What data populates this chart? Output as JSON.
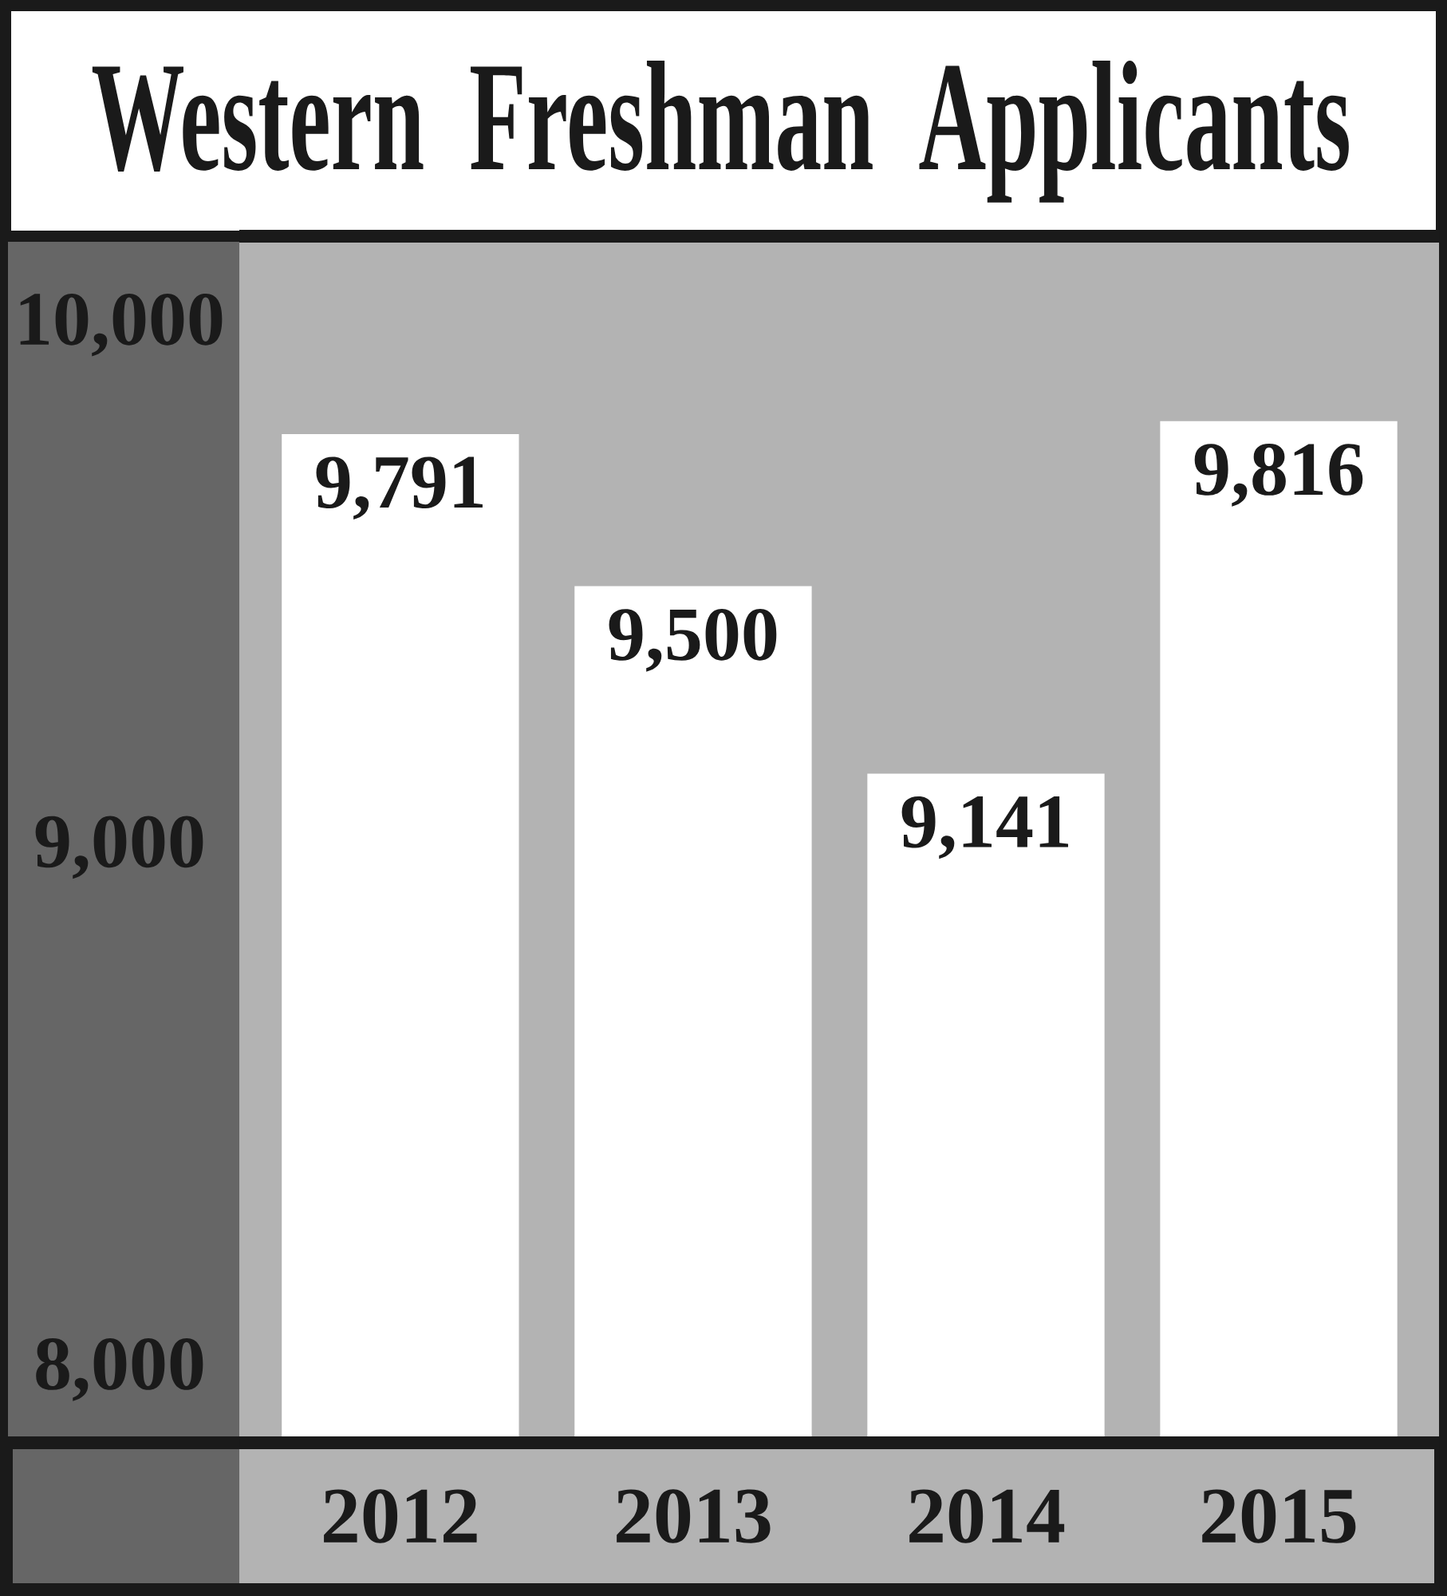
{
  "chart_data": {
    "type": "bar",
    "title": "Western Freshman Applicants",
    "categories": [
      "2012",
      "2013",
      "2014",
      "2015"
    ],
    "values": [
      9791,
      9500,
      9141,
      9816
    ],
    "value_labels": [
      "9,791",
      "9,500",
      "9,141",
      "9,816"
    ],
    "color": "#ffffff",
    "ylim": [
      7860,
      10170
    ],
    "yticks": [
      {
        "value": 8000,
        "label": "8,000"
      },
      {
        "value": 9000,
        "label": "9,000"
      },
      {
        "value": 10000,
        "label": "10,000"
      }
    ]
  }
}
